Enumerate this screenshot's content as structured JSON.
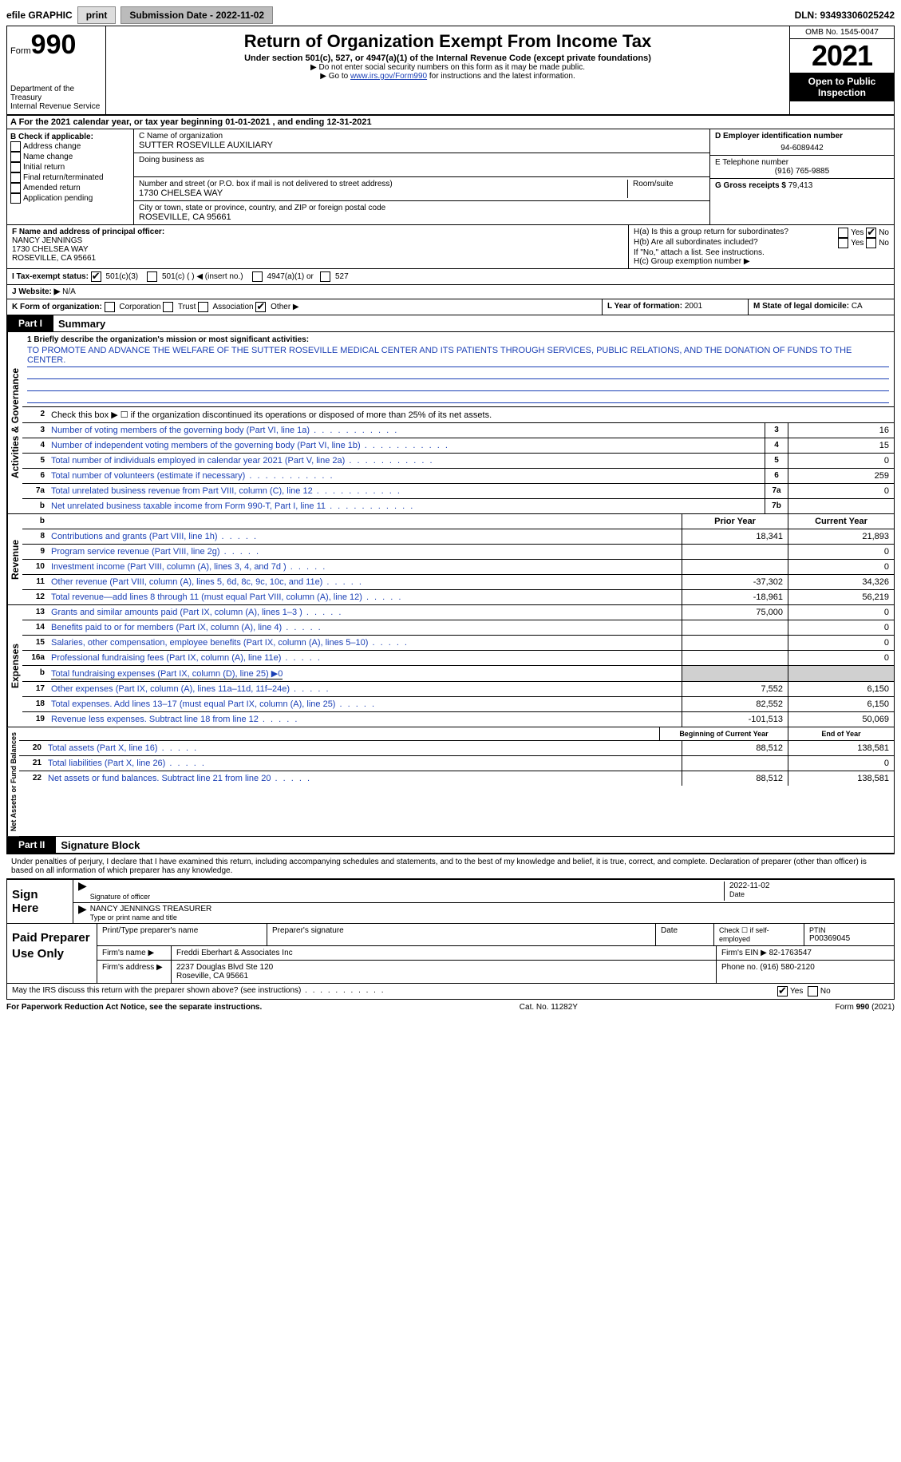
{
  "topbar": {
    "efile_label": "efile GRAPHIC",
    "print_btn": "print",
    "submission_label": "Submission Date - 2022-11-02",
    "dln_label": "DLN: 93493306025242"
  },
  "header": {
    "form_label": "Form",
    "form_num": "990",
    "dept": "Department of the Treasury",
    "irs": "Internal Revenue Service",
    "title": "Return of Organization Exempt From Income Tax",
    "sub1": "Under section 501(c), 527, or 4947(a)(1) of the Internal Revenue Code (except private foundations)",
    "sub2": "▶ Do not enter social security numbers on this form as it may be made public.",
    "sub3_pre": "▶ Go to ",
    "sub3_link": "www.irs.gov/Form990",
    "sub3_post": " for instructions and the latest information.",
    "omb": "OMB No. 1545-0047",
    "year": "2021",
    "open_pub": "Open to Public Inspection"
  },
  "row_a": "A For the 2021 calendar year, or tax year beginning 01-01-2021    , and ending 12-31-2021",
  "col_b": {
    "label": "B Check if applicable:",
    "items": [
      "Address change",
      "Name change",
      "Initial return",
      "Final return/terminated",
      "Amended return",
      "Application pending"
    ]
  },
  "col_c": {
    "name_label": "C Name of organization",
    "name_value": "SUTTER ROSEVILLE AUXILIARY",
    "dba_label": "Doing business as",
    "addr_label": "Number and street (or P.O. box if mail is not delivered to street address)",
    "room_label": "Room/suite",
    "addr_value": "1730 CHELSEA WAY",
    "city_label": "City or town, state or province, country, and ZIP or foreign postal code",
    "city_value": "ROSEVILLE, CA  95661"
  },
  "col_d": {
    "ein_label": "D Employer identification number",
    "ein_value": "94-6089442",
    "phone_label": "E Telephone number",
    "phone_value": "(916) 765-9885",
    "gross_label": "G Gross receipts $",
    "gross_value": "79,413"
  },
  "col_f": {
    "label": "F Name and address of principal officer:",
    "name": "NANCY JENNINGS",
    "addr1": "1730 CHELSEA WAY",
    "addr2": "ROSEVILLE, CA  95661"
  },
  "col_h": {
    "ha": "H(a)  Is this a group return for subordinates?",
    "hb": "H(b)  Are all subordinates included?",
    "note": "If \"No,\" attach a list. See instructions.",
    "hc": "H(c)  Group exemption number ▶",
    "yes": "Yes",
    "no": "No"
  },
  "row_i": {
    "label": "I   Tax-exempt status:",
    "opt1": "501(c)(3)",
    "opt2": "501(c) (  ) ◀ (insert no.)",
    "opt3": "4947(a)(1) or",
    "opt4": "527"
  },
  "row_j": {
    "label": "J   Website: ▶",
    "value": "N/A"
  },
  "row_k": {
    "label": "K Form of organization:",
    "opts": [
      "Corporation",
      "Trust",
      "Association",
      "Other ▶"
    ],
    "l_label": "L Year of formation:",
    "l_value": "2001",
    "m_label": "M State of legal domicile:",
    "m_value": "CA"
  },
  "part1": {
    "header": "Part I",
    "title": "Summary"
  },
  "mission": {
    "label": "1   Briefly describe the organization's mission or most significant activities:",
    "text": "TO PROMOTE AND ADVANCE THE WELFARE OF THE SUTTER ROSEVILLE MEDICAL CENTER AND ITS PATIENTS THROUGH SERVICES, PUBLIC RELATIONS, AND THE DONATION OF FUNDS TO THE CENTER."
  },
  "line2": "Check this box ▶ ☐  if the organization discontinued its operations or disposed of more than 25% of its net assets.",
  "summary_rows_top": [
    {
      "n": "3",
      "d": "Number of voting members of the governing body (Part VI, line 1a)",
      "box": "3",
      "v": "16"
    },
    {
      "n": "4",
      "d": "Number of independent voting members of the governing body (Part VI, line 1b)",
      "box": "4",
      "v": "15"
    },
    {
      "n": "5",
      "d": "Total number of individuals employed in calendar year 2021 (Part V, line 2a)",
      "box": "5",
      "v": "0"
    },
    {
      "n": "6",
      "d": "Total number of volunteers (estimate if necessary)",
      "box": "6",
      "v": "259"
    },
    {
      "n": "7a",
      "d": "Total unrelated business revenue from Part VIII, column (C), line 12",
      "box": "7a",
      "v": "0"
    },
    {
      "n": "b",
      "d": "Net unrelated business taxable income from Form 990-T, Part I, line 11",
      "box": "7b",
      "v": ""
    }
  ],
  "yearhdr": {
    "prior": "Prior Year",
    "current": "Current Year"
  },
  "revenue_rows": [
    {
      "n": "8",
      "d": "Contributions and grants (Part VIII, line 1h)",
      "p": "18,341",
      "c": "21,893"
    },
    {
      "n": "9",
      "d": "Program service revenue (Part VIII, line 2g)",
      "p": "",
      "c": "0"
    },
    {
      "n": "10",
      "d": "Investment income (Part VIII, column (A), lines 3, 4, and 7d )",
      "p": "",
      "c": "0"
    },
    {
      "n": "11",
      "d": "Other revenue (Part VIII, column (A), lines 5, 6d, 8c, 9c, 10c, and 11e)",
      "p": "-37,302",
      "c": "34,326"
    },
    {
      "n": "12",
      "d": "Total revenue—add lines 8 through 11 (must equal Part VIII, column (A), line 12)",
      "p": "-18,961",
      "c": "56,219"
    }
  ],
  "expense_rows": [
    {
      "n": "13",
      "d": "Grants and similar amounts paid (Part IX, column (A), lines 1–3 )",
      "p": "75,000",
      "c": "0"
    },
    {
      "n": "14",
      "d": "Benefits paid to or for members (Part IX, column (A), line 4)",
      "p": "",
      "c": "0"
    },
    {
      "n": "15",
      "d": "Salaries, other compensation, employee benefits (Part IX, column (A), lines 5–10)",
      "p": "",
      "c": "0"
    },
    {
      "n": "16a",
      "d": "Professional fundraising fees (Part IX, column (A), line 11e)",
      "p": "",
      "c": "0"
    },
    {
      "n": "b",
      "d": "Total fundraising expenses (Part IX, column (D), line 25) ▶0",
      "shaded": true
    },
    {
      "n": "17",
      "d": "Other expenses (Part IX, column (A), lines 11a–11d, 11f–24e)",
      "p": "7,552",
      "c": "6,150"
    },
    {
      "n": "18",
      "d": "Total expenses. Add lines 13–17 (must equal Part IX, column (A), line 25)",
      "p": "82,552",
      "c": "6,150"
    },
    {
      "n": "19",
      "d": "Revenue less expenses. Subtract line 18 from line 12",
      "p": "-101,513",
      "c": "50,069"
    }
  ],
  "yearhdr2": {
    "prior": "Beginning of Current Year",
    "current": "End of Year"
  },
  "netasset_rows": [
    {
      "n": "20",
      "d": "Total assets (Part X, line 16)",
      "p": "88,512",
      "c": "138,581"
    },
    {
      "n": "21",
      "d": "Total liabilities (Part X, line 26)",
      "p": "",
      "c": "0"
    },
    {
      "n": "22",
      "d": "Net assets or fund balances. Subtract line 21 from line 20",
      "p": "88,512",
      "c": "138,581"
    }
  ],
  "vtabs": {
    "gov": "Activities & Governance",
    "rev": "Revenue",
    "exp": "Expenses",
    "net": "Net Assets or Fund Balances"
  },
  "part2": {
    "header": "Part II",
    "title": "Signature Block"
  },
  "sig_decl": "Under penalties of perjury, I declare that I have examined this return, including accompanying schedules and statements, and to the best of my knowledge and belief, it is true, correct, and complete. Declaration of preparer (other than officer) is based on all information of which preparer has any knowledge.",
  "sign_here": "Sign Here",
  "sig_officer_label": "Signature of officer",
  "sig_date": "2022-11-02",
  "sig_date_label": "Date",
  "sig_name": "NANCY JENNINGS  TREASURER",
  "sig_name_label": "Type or print name and title",
  "paid_label": "Paid Preparer Use Only",
  "prep": {
    "print_label": "Print/Type preparer's name",
    "sig_label": "Preparer's signature",
    "date_label": "Date",
    "check_label": "Check ☐ if self-employed",
    "ptin_label": "PTIN",
    "ptin": "P00369045",
    "firm_name_label": "Firm's name   ▶",
    "firm_name": "Freddi Eberhart & Associates Inc",
    "firm_ein_label": "Firm's EIN ▶",
    "firm_ein": "82-1763547",
    "firm_addr_label": "Firm's address ▶",
    "firm_addr1": "2237 Douglas Blvd Ste 120",
    "firm_addr2": "Roseville, CA  95661",
    "phone_label": "Phone no.",
    "phone": "(916) 580-2120"
  },
  "discuss": "May the IRS discuss this return with the preparer shown above? (see instructions)",
  "footer": {
    "l": "For Paperwork Reduction Act Notice, see the separate instructions.",
    "m": "Cat. No. 11282Y",
    "r": "Form 990 (2021)"
  }
}
